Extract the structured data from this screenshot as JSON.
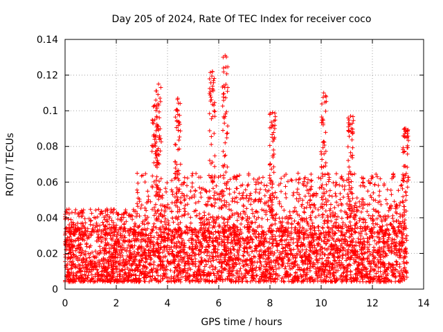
{
  "chart_data": {
    "type": "scatter",
    "title": "Day 205 of 2024, Rate Of TEC Index for receiver coco",
    "xlabel": "GPS time / hours",
    "ylabel": "ROTI / TECUs",
    "xlim": [
      0,
      14
    ],
    "ylim": [
      0,
      0.14
    ],
    "x_ticks": [
      "0",
      "2",
      "4",
      "6",
      "8",
      "10",
      "12",
      "14"
    ],
    "y_ticks": [
      "0",
      "0.02",
      "0.04",
      "0.06",
      "0.08",
      "0.1",
      "0.12",
      "0.14"
    ],
    "grid": true,
    "marker": "+",
    "color": "#ff0000",
    "series": [
      {
        "name": "ROTI",
        "x_range": [
          0,
          13.35
        ],
        "baseline_band": [
          0.004,
          0.035
        ],
        "peaks": [
          {
            "x": 3.65,
            "y": 0.115
          },
          {
            "x": 3.5,
            "y": 0.103
          },
          {
            "x": 4.4,
            "y": 0.107
          },
          {
            "x": 5.75,
            "y": 0.122
          },
          {
            "x": 6.25,
            "y": 0.131
          },
          {
            "x": 8.1,
            "y": 0.099
          },
          {
            "x": 10.1,
            "y": 0.11
          },
          {
            "x": 11.15,
            "y": 0.097
          },
          {
            "x": 13.3,
            "y": 0.09
          }
        ]
      }
    ]
  }
}
